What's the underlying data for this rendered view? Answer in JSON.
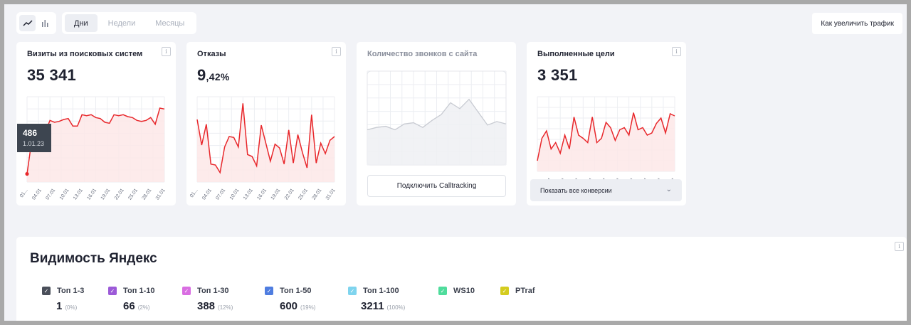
{
  "toolbar": {
    "chart_modes": [
      {
        "icon": "line-chart-icon",
        "active": true
      },
      {
        "icon": "bar-chart-icon",
        "active": false
      }
    ],
    "periods": [
      {
        "label": "Дни",
        "active": true
      },
      {
        "label": "Недели",
        "active": false
      },
      {
        "label": "Месяцы",
        "active": false
      }
    ],
    "traffic_button": "Как увеличить трафик"
  },
  "cards": {
    "visits": {
      "title": "Визиты из поисковых систем",
      "value": "35 341",
      "tooltip": {
        "value": "486",
        "date": "1.01.23"
      }
    },
    "bounces": {
      "title": "Отказы",
      "value_main": "9",
      "value_fraction": ",42%"
    },
    "calls": {
      "title": "Количество звонков с сайта",
      "button": "Подключить Calltracking"
    },
    "goals": {
      "title": "Выполненные цели",
      "value": "3 351",
      "dropdown": "Показать все конверсии"
    }
  },
  "info_glyph": "i",
  "x_ticks": [
    "01...",
    "04.01",
    "07.01",
    "10.01",
    "13.01",
    "16.01",
    "19.01",
    "22.01",
    "25.01",
    "28.01",
    "31.01"
  ],
  "chart_data": [
    {
      "type": "area",
      "x": [
        "01.01",
        "02.01",
        "03.01",
        "04.01",
        "05.01",
        "06.01",
        "07.01",
        "08.01",
        "09.01",
        "10.01",
        "11.01",
        "12.01",
        "13.01",
        "14.01",
        "15.01",
        "16.01",
        "17.01",
        "18.01",
        "19.01",
        "20.01",
        "21.01",
        "22.01",
        "23.01",
        "24.01",
        "25.01",
        "26.01",
        "27.01",
        "28.01",
        "29.01",
        "30.01",
        "31.01"
      ],
      "values": [
        486,
        830,
        930,
        920,
        930,
        1050,
        1030,
        1040,
        1060,
        1070,
        990,
        990,
        1110,
        1100,
        1110,
        1080,
        1070,
        1030,
        1020,
        1110,
        1100,
        1110,
        1090,
        1080,
        1050,
        1040,
        1050,
        1080,
        1010,
        1180,
        1170
      ],
      "ylim": [
        400,
        1300
      ],
      "grid": true,
      "color": "#e8272b"
    },
    {
      "type": "area",
      "values": [
        9.6,
        6.9,
        9.1,
        4.9,
        4.8,
        4.0,
        6.7,
        7.8,
        7.7,
        6.7,
        11.3,
        5.9,
        5.7,
        4.7,
        9.0,
        7.1,
        5.2,
        7.0,
        6.6,
        4.9,
        8.5,
        5.0,
        8.0,
        6.1,
        4.5,
        10.1,
        5.0,
        7.1,
        6.0,
        7.4,
        7.8
      ],
      "ylim": [
        3,
        12
      ],
      "grid": true,
      "color": "#e8272b"
    },
    {
      "type": "area",
      "values": [
        3.0,
        3.2,
        3.3,
        3.0,
        3.5,
        3.6,
        3.2,
        3.8,
        4.3,
        5.3,
        4.8,
        5.6,
        4.5,
        3.4,
        3.7,
        3.5
      ],
      "ylim": [
        0,
        8
      ],
      "grid": true,
      "color": "#c8cbd2"
    },
    {
      "type": "area",
      "values": [
        1.0,
        3.1,
        3.8,
        2.1,
        2.7,
        1.7,
        3.4,
        2.1,
        5.1,
        3.4,
        3.1,
        2.7,
        5.1,
        2.7,
        3.1,
        4.6,
        4.1,
        2.9,
        3.9,
        4.1,
        3.4,
        5.5,
        3.9,
        4.1,
        3.4,
        3.6,
        4.5,
        5.0,
        3.6,
        5.4,
        5.2
      ],
      "ylim": [
        0,
        7
      ],
      "grid": true,
      "color": "#e8272b"
    }
  ],
  "visibility": {
    "title": "Видимость Яндекс",
    "items": [
      {
        "label": "Топ 1-3",
        "value": "1",
        "pct": "(0%)",
        "color": "#4a4f5a"
      },
      {
        "label": "Топ 1-10",
        "value": "66",
        "pct": "(2%)",
        "color": "#9c5ad8"
      },
      {
        "label": "Топ 1-30",
        "value": "388",
        "pct": "(12%)",
        "color": "#d96ee2"
      },
      {
        "label": "Топ 1-50",
        "value": "600",
        "pct": "(19%)",
        "color": "#4f7de0"
      },
      {
        "label": "Топ 1-100",
        "value": "3211",
        "pct": "(100%)",
        "color": "#7fd4ee"
      },
      {
        "label": "WS10",
        "value": "",
        "pct": "",
        "color": "#4fdc9c"
      },
      {
        "label": "PTraf",
        "value": "",
        "pct": "",
        "color": "#d4cc1f"
      }
    ]
  }
}
